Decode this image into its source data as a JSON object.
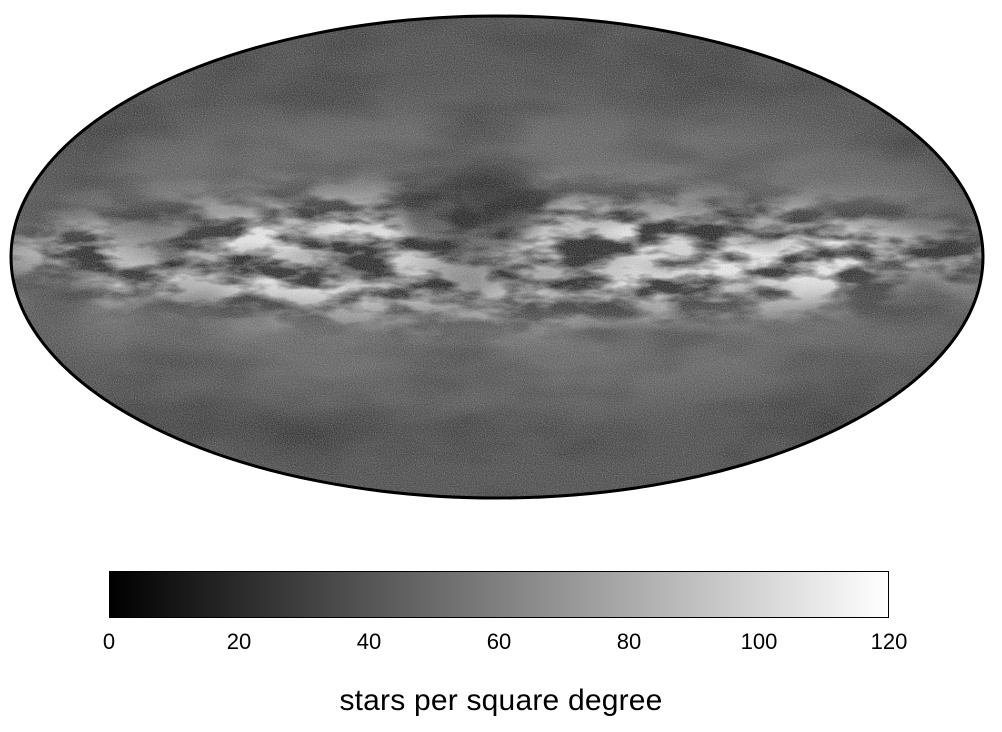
{
  "map": {
    "projection": "mollweide",
    "quantity": "stellar density",
    "palette": {
      "low": "#000000",
      "high": "#ffffff"
    }
  },
  "colorbar": {
    "min": 0,
    "max": 120,
    "ticks": [
      "0",
      "20",
      "40",
      "60",
      "80",
      "100",
      "120"
    ],
    "label": "stars per square degree"
  }
}
